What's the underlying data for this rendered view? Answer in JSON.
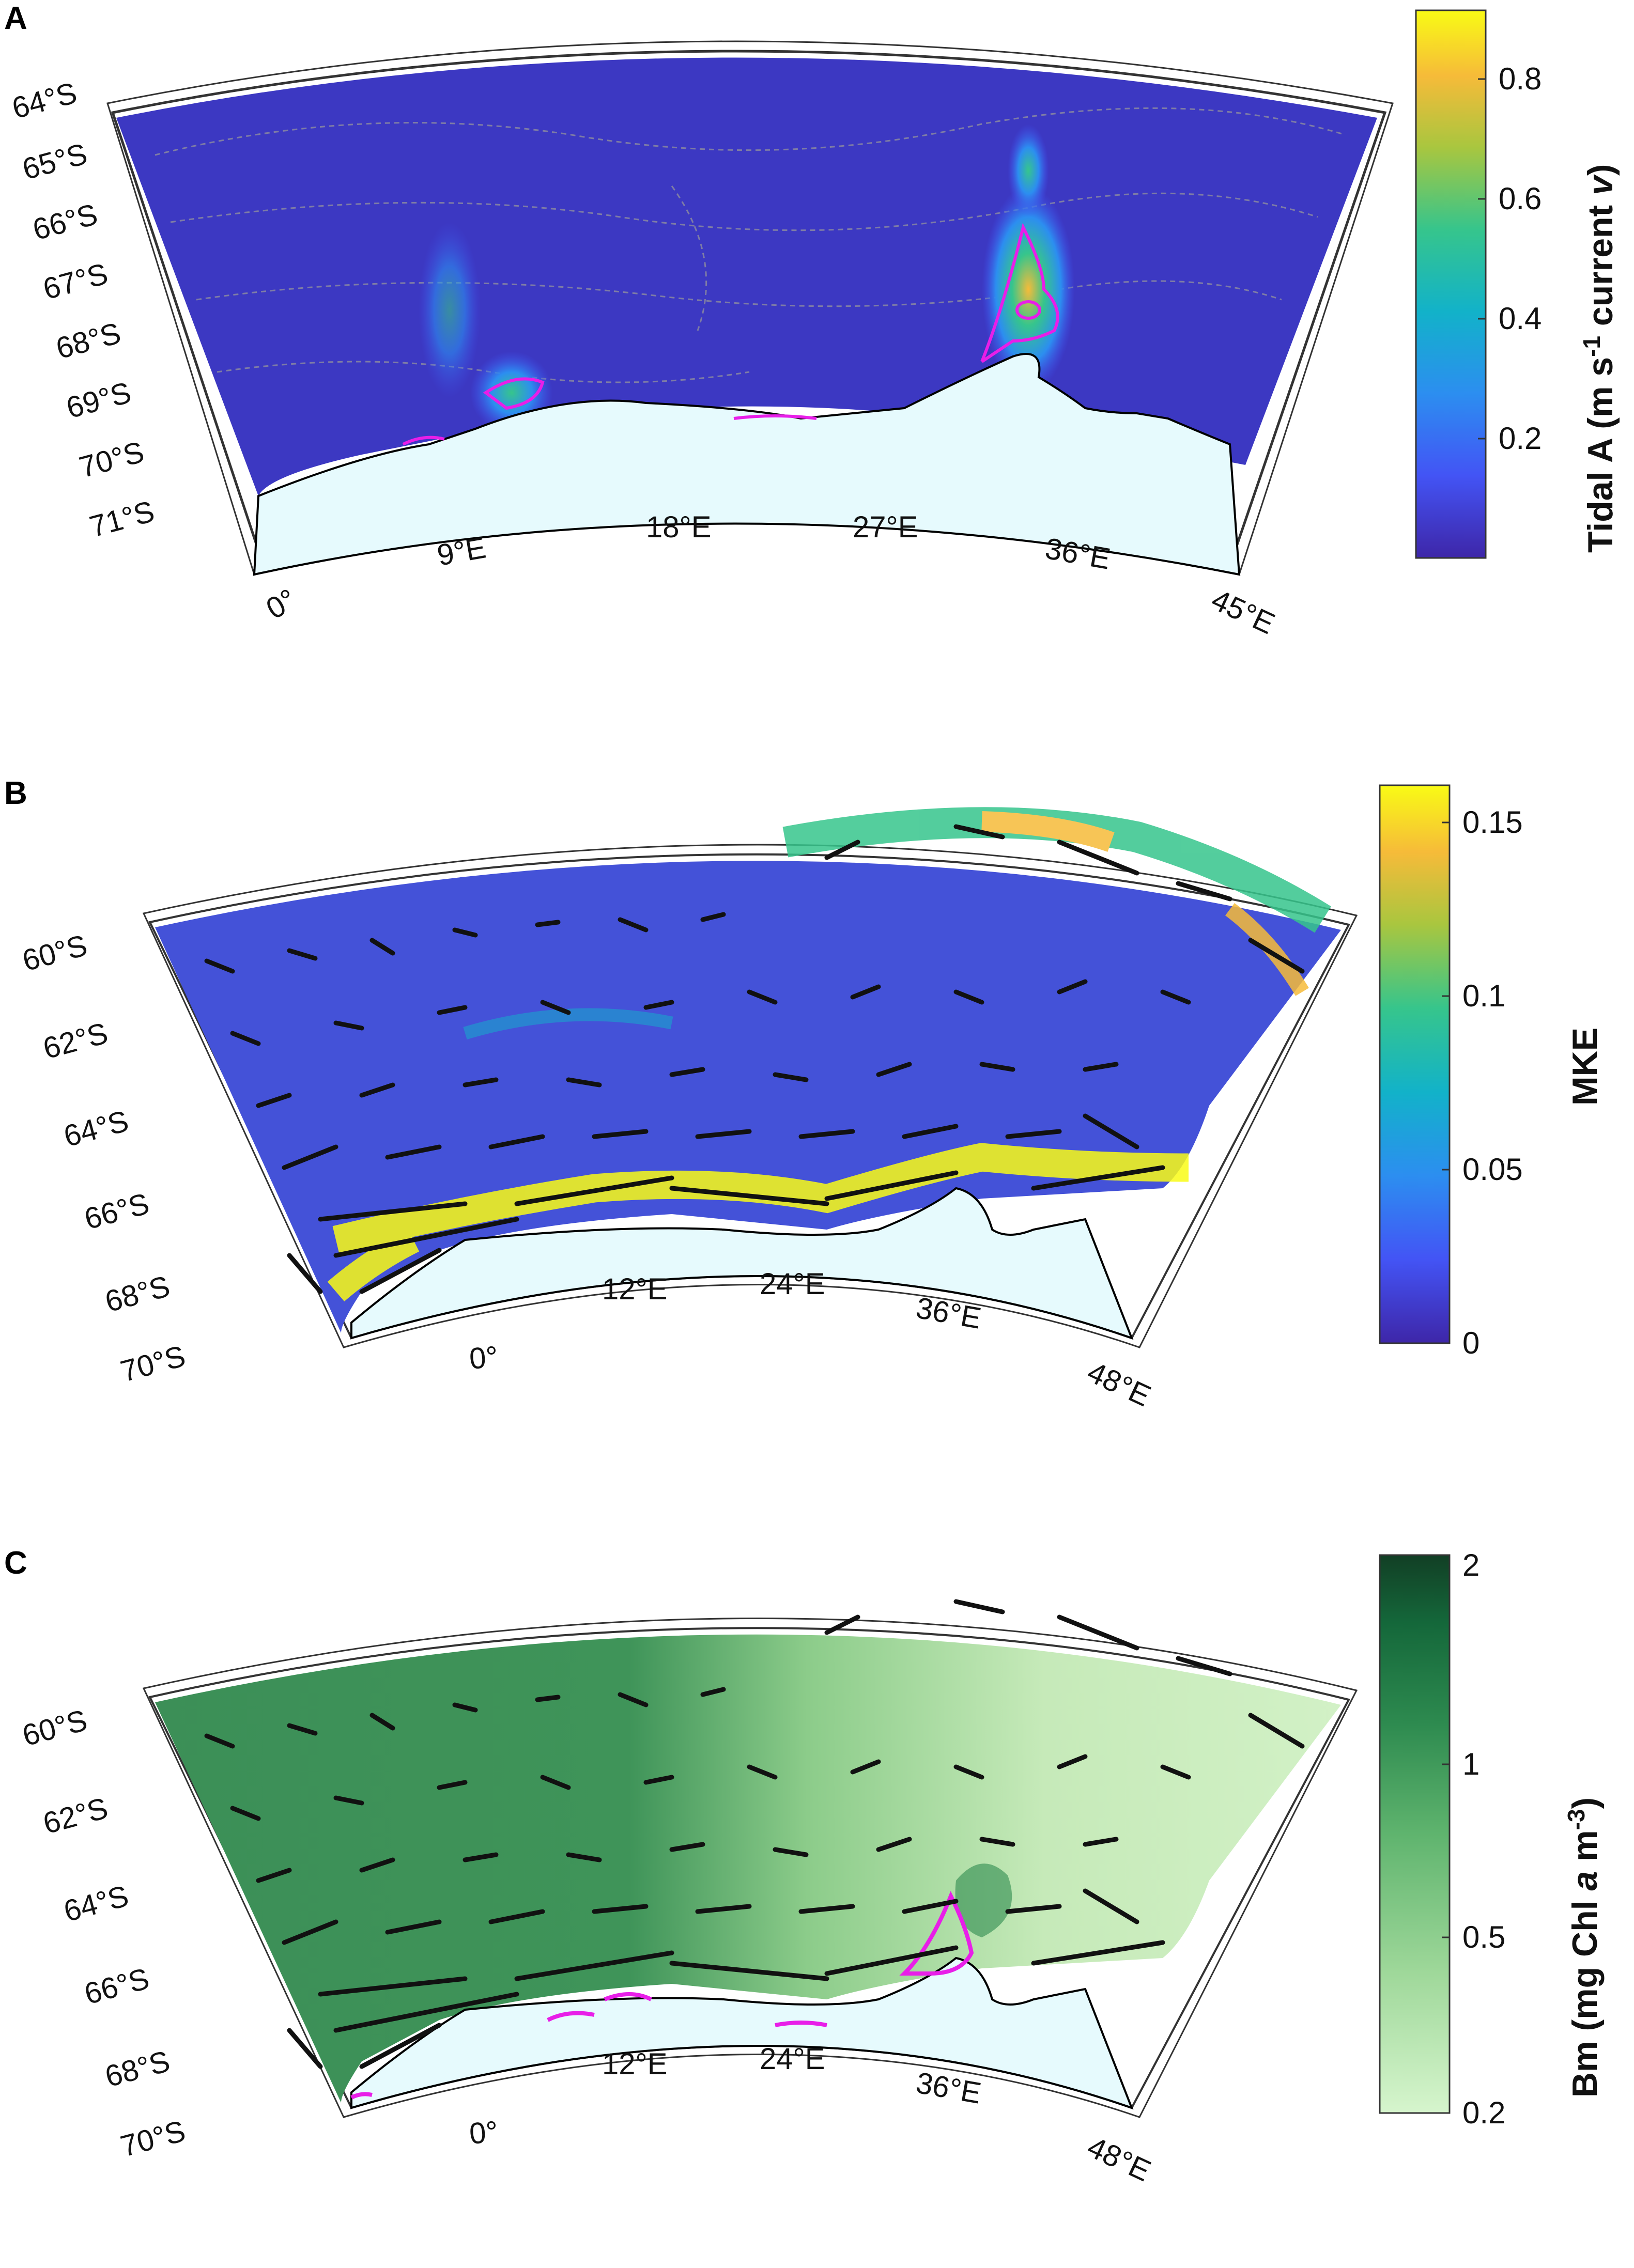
{
  "panels": [
    {
      "letter": "A",
      "lat_labels": [
        "64°S",
        "65°S",
        "66°S",
        "67°S",
        "68°S",
        "69°S",
        "70°S",
        "71°S"
      ],
      "lon_labels": [
        "0°",
        "9°E",
        "18°E",
        "27°E",
        "36°E",
        "45°E"
      ],
      "colorbar": {
        "title_parts": [
          "Tidal A (m s",
          "-1",
          " current ",
          "v",
          ")"
        ],
        "ticks": [
          "0.8",
          "0.6",
          "0.4",
          "0.2"
        ],
        "colormap": "parula",
        "colors": [
          "#3e26a8",
          "#4354f5",
          "#2c8ef0",
          "#12b2c9",
          "#36c58c",
          "#a9c63f",
          "#f6bb39",
          "#f9fb15"
        ]
      },
      "overlay_contour_color": "#e81ee8"
    },
    {
      "letter": "B",
      "lat_labels": [
        "60°S",
        "62°S",
        "64°S",
        "66°S",
        "68°S",
        "70°S"
      ],
      "lon_labels": [
        "0°",
        "12°E",
        "24°E",
        "36°E",
        "48°E"
      ],
      "colorbar": {
        "title": "MKE",
        "ticks": [
          "0.15",
          "0.1",
          "0.05",
          "0"
        ],
        "colormap": "parula",
        "colors": [
          "#3e26a8",
          "#4354f5",
          "#2c8ef0",
          "#12b2c9",
          "#36c58c",
          "#a9c63f",
          "#f6bb39",
          "#f9fb15"
        ]
      },
      "vectors": "black arrows"
    },
    {
      "letter": "C",
      "lat_labels": [
        "60°S",
        "62°S",
        "64°S",
        "66°S",
        "68°S",
        "70°S"
      ],
      "lon_labels": [
        "0°",
        "12°E",
        "24°E",
        "36°E",
        "48°E"
      ],
      "colorbar": {
        "title_parts": [
          "Bm (mg Chl ",
          "a",
          " m",
          "-3",
          ")"
        ],
        "ticks": [
          "2",
          "1",
          "0.5",
          "0.2"
        ],
        "colormap": "greens",
        "colors": [
          "#d6f5cd",
          "#9fd89a",
          "#5fb46e",
          "#2d8a4f",
          "#14673a",
          "#123f25"
        ]
      },
      "overlay_contour_color": "#e81ee8",
      "vectors": "black arrows"
    }
  ],
  "colors": {
    "land": "#e6fafd",
    "coastline": "#000000",
    "bathymetry_contour": "#9a9a9a",
    "frame": "#333333"
  }
}
